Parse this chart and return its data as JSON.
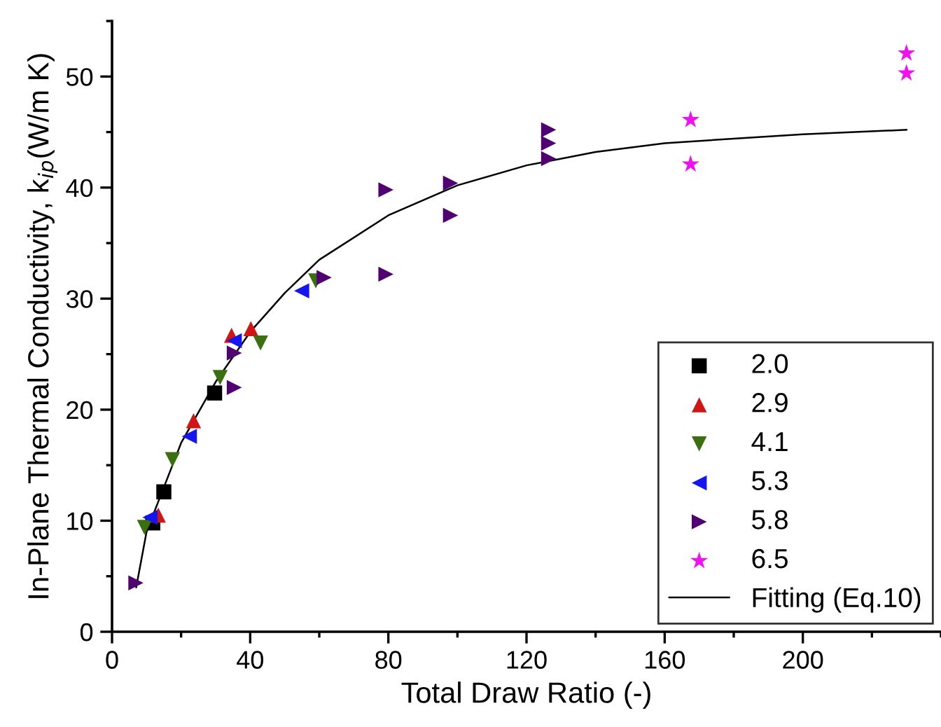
{
  "chart_data": {
    "type": "scatter",
    "xlabel": "Total Draw Ratio (-)",
    "ylabel": "In-Plane Thermal Conductivity, k$_{ip}$(W/m K)",
    "xlim": [
      0,
      240
    ],
    "ylim": [
      0,
      55
    ],
    "xticks": [
      0,
      40,
      80,
      120,
      160,
      200
    ],
    "yticks": [
      0,
      10,
      20,
      30,
      40,
      50
    ],
    "grid": false,
    "legend": "bottom right",
    "series": [
      {
        "name": "2.0",
        "color": "#000000",
        "marker": "square",
        "x": [
          11.8,
          15,
          29.7
        ],
        "values": [
          9.8,
          12.6,
          21.5
        ]
      },
      {
        "name": "2.9",
        "color": "#d01515",
        "marker": "triangle",
        "x": [
          13.4,
          23.6,
          34.6,
          40.2
        ],
        "values": [
          10.5,
          19.0,
          26.7,
          27.3
        ]
      },
      {
        "name": "4.1",
        "color": "#3a7010",
        "marker": "triangle_down",
        "x": [
          9.4,
          17.5,
          31.3,
          43,
          59
        ],
        "values": [
          9.4,
          15.5,
          22.9,
          26.0,
          31.6
        ]
      },
      {
        "name": "5.3",
        "color": "#1515f0",
        "marker": "triangle_left",
        "x": [
          11,
          22.4,
          35.4,
          54.9
        ],
        "values": [
          10.3,
          17.6,
          26.2,
          30.7
        ]
      },
      {
        "name": "5.8",
        "color": "#500070",
        "marker": "triangle_right",
        "x": [
          6.9,
          35.4,
          35.4,
          61.4,
          79.3,
          79.3,
          98,
          98,
          126.4,
          126.4,
          126.4
        ],
        "values": [
          4.4,
          25.1,
          22.0,
          31.9,
          32.2,
          39.8,
          37.5,
          40.4,
          45.2,
          44.0,
          42.6
        ]
      },
      {
        "name": "6.5",
        "color": "#f010f0",
        "marker": "star",
        "x": [
          167.5,
          167.5,
          230,
          230
        ],
        "values": [
          46.1,
          42.1,
          52.1,
          50.3
        ]
      },
      {
        "name": "Fitting (Eq.10)",
        "type": "line",
        "color": "#000000",
        "marker": "none",
        "line_style": "solid",
        "x": [
          7,
          10,
          15,
          20,
          30,
          40,
          50,
          60,
          80,
          100,
          120,
          140,
          160,
          200,
          230
        ],
        "values": [
          4,
          9,
          13,
          17,
          22.5,
          27,
          30.5,
          33.5,
          37.5,
          40.2,
          42,
          43.2,
          44,
          44.8,
          45.2
        ]
      }
    ]
  }
}
